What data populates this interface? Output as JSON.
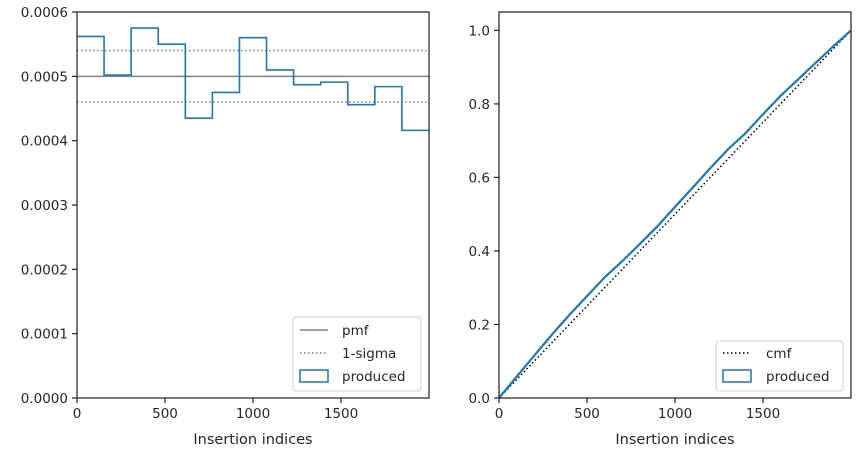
{
  "chart_data": [
    {
      "type": "step",
      "xlabel": "Insertion indices",
      "ylabel": "",
      "xlim": [
        0,
        2000
      ],
      "ylim": [
        0,
        0.0006
      ],
      "xticks": [
        0,
        500,
        1000,
        1500
      ],
      "xtick_labels": [
        "0",
        "500",
        "1000",
        "1500"
      ],
      "yticks": [
        0,
        0.0001,
        0.0002,
        0.0003,
        0.0004,
        0.0005,
        0.0006
      ],
      "ytick_labels": [
        "0.0000",
        "0.0001",
        "0.0002",
        "0.0003",
        "0.0004",
        "0.0005",
        "0.0006"
      ],
      "grid": false,
      "legend_location": "lower-right",
      "reference_lines": [
        {
          "name": "pmf",
          "y": 0.0005,
          "style": "solid",
          "color": "#808080"
        },
        {
          "name": "1-sigma",
          "y": 0.00054,
          "style": "dotted",
          "color": "#808080"
        },
        {
          "name": "1-sigma",
          "y": 0.00046,
          "style": "dotted",
          "color": "#808080"
        }
      ],
      "series": [
        {
          "name": "produced",
          "color": "#1f77b4",
          "bin_edges": [
            0,
            153.8,
            307.7,
            461.5,
            615.4,
            769.2,
            923.1,
            1076.9,
            1230.8,
            1384.6,
            1538.5,
            1692.3,
            1846.2,
            2000
          ],
          "values": [
            0.000562,
            0.000502,
            0.000575,
            0.00055,
            0.000435,
            0.000475,
            0.00056,
            0.00051,
            0.000487,
            0.000491,
            0.000456,
            0.000484,
            0.000416
          ]
        }
      ],
      "legend": [
        {
          "label": "pmf",
          "kind": "line-solid",
          "color": "#808080"
        },
        {
          "label": "1-sigma",
          "kind": "line-dotted",
          "color": "#808080"
        },
        {
          "label": "produced",
          "kind": "patch",
          "color": "#1f77b4"
        }
      ]
    },
    {
      "type": "line",
      "xlabel": "Insertion indices",
      "ylabel": "",
      "xlim": [
        0,
        2000
      ],
      "ylim": [
        0,
        1.05
      ],
      "xticks": [
        0,
        500,
        1000,
        1500
      ],
      "xtick_labels": [
        "0",
        "500",
        "1000",
        "1500"
      ],
      "yticks": [
        0,
        0.2,
        0.4,
        0.6,
        0.8,
        1.0
      ],
      "ytick_labels": [
        "0.0",
        "0.2",
        "0.4",
        "0.6",
        "0.8",
        "1.0"
      ],
      "grid": false,
      "legend_location": "lower-right",
      "series": [
        {
          "name": "cmf",
          "style": "dotted",
          "color": "#000000",
          "x": [
            0,
            2000
          ],
          "y": [
            0,
            1.0
          ]
        },
        {
          "name": "produced",
          "style": "solid",
          "color": "#1f77b4",
          "x": [
            0,
            100,
            200,
            300,
            400,
            500,
            600,
            700,
            800,
            900,
            1000,
            1100,
            1200,
            1300,
            1400,
            1500,
            1600,
            1700,
            1800,
            1900,
            2000
          ],
          "y": [
            0,
            0.058,
            0.115,
            0.172,
            0.226,
            0.277,
            0.328,
            0.372,
            0.419,
            0.467,
            0.52,
            0.572,
            0.625,
            0.676,
            0.72,
            0.772,
            0.822,
            0.867,
            0.912,
            0.957,
            1.0
          ]
        }
      ],
      "legend": [
        {
          "label": "cmf",
          "kind": "line-dotted",
          "color": "#000000"
        },
        {
          "label": "produced",
          "kind": "patch",
          "color": "#1f77b4"
        }
      ]
    }
  ]
}
